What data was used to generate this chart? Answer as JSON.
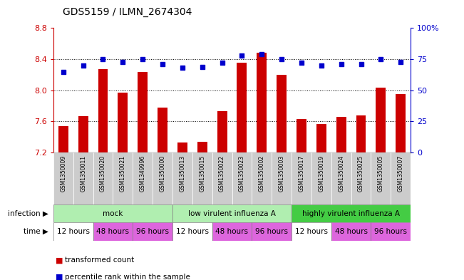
{
  "title": "GDS5159 / ILMN_2674304",
  "samples": [
    "GSM1350009",
    "GSM1350011",
    "GSM1350020",
    "GSM1350021",
    "GSM1349996",
    "GSM1350000",
    "GSM1350013",
    "GSM1350015",
    "GSM1350022",
    "GSM1350023",
    "GSM1350002",
    "GSM1350003",
    "GSM1350017",
    "GSM1350019",
    "GSM1350024",
    "GSM1350025",
    "GSM1350005",
    "GSM1350007"
  ],
  "bar_values": [
    7.54,
    7.67,
    8.27,
    7.97,
    8.24,
    7.78,
    7.33,
    7.34,
    7.73,
    8.35,
    8.48,
    8.2,
    7.63,
    7.57,
    7.66,
    7.68,
    8.03,
    7.95
  ],
  "dot_values": [
    65,
    70,
    75,
    73,
    75,
    71,
    68,
    69,
    72,
    78,
    79,
    75,
    72,
    70,
    71,
    71,
    75,
    73
  ],
  "ylim_left": [
    7.2,
    8.8
  ],
  "ylim_right": [
    0,
    100
  ],
  "yticks_left": [
    7.2,
    7.6,
    8.0,
    8.4,
    8.8
  ],
  "yticks_right": [
    0,
    25,
    50,
    75,
    100
  ],
  "bar_color": "#cc0000",
  "dot_color": "#0000cc",
  "infection_groups": [
    {
      "label": "mock",
      "start": 0,
      "end": 6,
      "color": "#aaeaaa"
    },
    {
      "label": "low virulent influenza A",
      "start": 6,
      "end": 12,
      "color": "#aaeaaa"
    },
    {
      "label": "highly virulent influenza A",
      "start": 12,
      "end": 18,
      "color": "#55cc55"
    }
  ],
  "time_slots": [
    {
      "label": "12 hours",
      "color": "#ffffff",
      "start": 0,
      "end": 2
    },
    {
      "label": "48 hours",
      "color": "#dd66dd",
      "start": 2,
      "end": 4
    },
    {
      "label": "96 hours",
      "color": "#dd66dd",
      "start": 4,
      "end": 6
    },
    {
      "label": "12 hours",
      "color": "#ffffff",
      "start": 6,
      "end": 8
    },
    {
      "label": "48 hours",
      "color": "#dd66dd",
      "start": 8,
      "end": 10
    },
    {
      "label": "96 hours",
      "color": "#dd66dd",
      "start": 10,
      "end": 12
    },
    {
      "label": "12 hours",
      "color": "#ffffff",
      "start": 12,
      "end": 14
    },
    {
      "label": "48 hours",
      "color": "#dd66dd",
      "start": 14,
      "end": 16
    },
    {
      "label": "96 hours",
      "color": "#dd66dd",
      "start": 16,
      "end": 18
    }
  ],
  "legend_bar_label": "transformed count",
  "legend_dot_label": "percentile rank within the sample",
  "infection_label": "infection",
  "time_label": "time",
  "sample_box_color": "#cccccc",
  "grid_dotted_ticks": [
    7.6,
    8.0,
    8.4
  ]
}
